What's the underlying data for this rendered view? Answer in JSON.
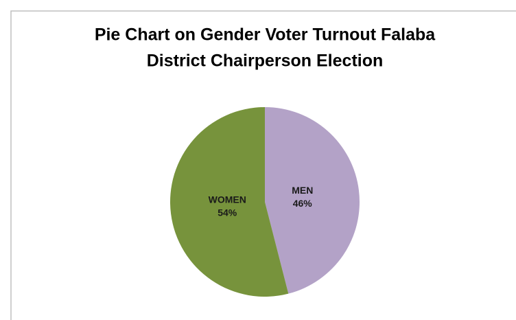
{
  "chart_data": {
    "type": "pie",
    "title": [
      "Pie Chart on Gender Voter Turnout Falaba",
      "District Chairperson Election"
    ],
    "categories": [
      "MEN",
      "WOMEN"
    ],
    "values": [
      46,
      54
    ],
    "value_labels": [
      "46%",
      "54%"
    ],
    "colors": [
      "#b3a2c7",
      "#77933c"
    ]
  }
}
